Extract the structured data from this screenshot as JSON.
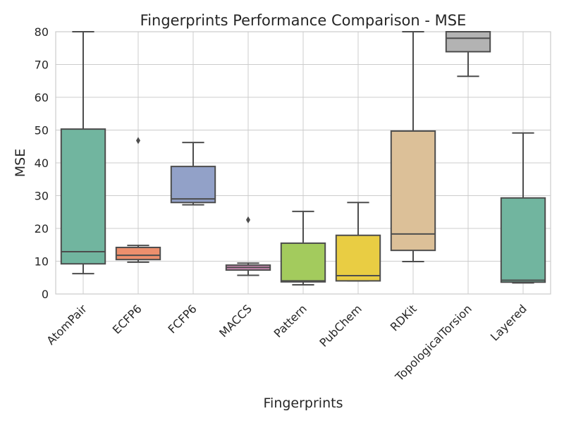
{
  "chart_data": {
    "type": "box",
    "title": "Fingerprints Performance Comparison - MSE",
    "xlabel": "Fingerprints",
    "ylabel": "MSE",
    "ylim": [
      0,
      80
    ],
    "yticks": [
      0,
      10,
      20,
      30,
      40,
      50,
      60,
      70,
      80
    ],
    "grid": true,
    "categories": [
      "AtomPair",
      "ECFP6",
      "FCFP6",
      "MACCS",
      "Pattern",
      "PubChem",
      "RDKit",
      "TopologicalTorsion",
      "Layered"
    ],
    "boxes": [
      {
        "name": "AtomPair",
        "whislo": 6.2,
        "q1": 9.2,
        "med": 12.9,
        "q3": 50.3,
        "whishi": 80,
        "fliers": [],
        "color": "#71b59f"
      },
      {
        "name": "ECFP6",
        "whislo": 9.7,
        "q1": 10.5,
        "med": 11.8,
        "q3": 14.2,
        "whishi": 14.8,
        "fliers": [
          46.8
        ],
        "color": "#ec8f6d"
      },
      {
        "name": "FCFP6",
        "whislo": 27.2,
        "q1": 27.9,
        "med": 29.0,
        "q3": 38.9,
        "whishi": 46.2,
        "fliers": [],
        "color": "#92a1c8"
      },
      {
        "name": "MACCS",
        "whislo": 5.7,
        "q1": 7.3,
        "med": 8.1,
        "q3": 8.8,
        "whishi": 9.4,
        "fliers": [
          22.6
        ],
        "color": "#d38db8"
      },
      {
        "name": "Pattern",
        "whislo": 2.8,
        "q1": 3.7,
        "med": 4.0,
        "q3": 15.5,
        "whishi": 25.2,
        "fliers": [],
        "color": "#a3cb5d"
      },
      {
        "name": "PubChem",
        "whislo": 4.0,
        "q1": 4.0,
        "med": 5.6,
        "q3": 17.9,
        "whishi": 27.9,
        "fliers": [],
        "color": "#e9cd43"
      },
      {
        "name": "RDKit",
        "whislo": 9.9,
        "q1": 13.3,
        "med": 18.3,
        "q3": 49.7,
        "whishi": 80,
        "fliers": [],
        "color": "#dcc098"
      },
      {
        "name": "TopologicalTorsion",
        "whislo": 66.4,
        "q1": 73.9,
        "med": 78.0,
        "q3": 80,
        "whishi": 80,
        "fliers": [],
        "color": "#b3b3b3"
      },
      {
        "name": "Layered",
        "whislo": 3.4,
        "q1": 3.6,
        "med": 4.2,
        "q3": 29.3,
        "whishi": 49.1,
        "fliers": [],
        "color": "#71b59f"
      }
    ]
  }
}
